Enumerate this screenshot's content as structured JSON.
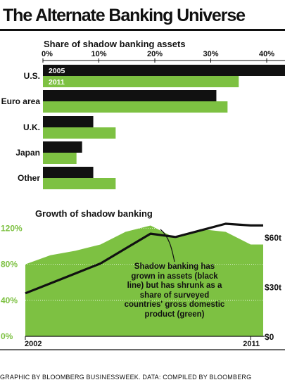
{
  "title": "The Alternate Banking Universe",
  "source_note": "GRAPHIC BY BLOOMBERG BUSINESSWEEK. DATA: COMPILED BY BLOOMBERG",
  "colors": {
    "black_series": "#111111",
    "green_series": "#7dc142",
    "area_fill": "#7dc142",
    "trend_line": "#111111"
  },
  "chart_data": [
    {
      "type": "bar",
      "orientation": "horizontal",
      "title": "Share of shadow banking assets",
      "categories": [
        "U.S.",
        "Euro area",
        "U.K.",
        "Japan",
        "Other"
      ],
      "series": [
        {
          "name": "2005",
          "values": [
            44,
            31,
            9,
            7,
            9
          ]
        },
        {
          "name": "2011",
          "values": [
            35,
            33,
            13,
            6,
            13
          ]
        }
      ],
      "xlim": [
        0,
        43
      ],
      "xticks": [
        0,
        10,
        20,
        30,
        40
      ],
      "xtick_labels": [
        "0%",
        "10%",
        "20%",
        "30%",
        "40%"
      ],
      "grid": false,
      "legend_placement": "inside first bars"
    },
    {
      "type": "area",
      "title": "Growth of shadow banking",
      "x_range": [
        2002,
        2011.5
      ],
      "x_labels": [
        "2002",
        "2011"
      ],
      "series": [
        {
          "axis": "left",
          "x": [
            2002,
            2003,
            2004,
            2005,
            2006,
            2007,
            2008,
            2009,
            2010,
            2011,
            2011.5
          ],
          "values": [
            80,
            90,
            95,
            102,
            116,
            123,
            109,
            119,
            116,
            102,
            102
          ]
        },
        {
          "axis": "right",
          "x": [
            2002,
            2003,
            2004,
            2005,
            2006,
            2007,
            2008,
            2009,
            2010,
            2011,
            2011.5
          ],
          "values": [
            26,
            32,
            38,
            44,
            53,
            62,
            60,
            64,
            68,
            67,
            67
          ]
        }
      ],
      "left_axis": {
        "range": [
          0,
          125
        ],
        "ticks": [
          "0%",
          "40%",
          "80%",
          "120%"
        ]
      },
      "right_axis": {
        "range": [
          0,
          68
        ],
        "ticks": [
          "$0",
          "$30t",
          "$60t"
        ]
      },
      "annotation": "Shadow banking has grown in assets (black line) but has shrunk as a share of surveyed countries' gross domestic product (green)"
    }
  ]
}
